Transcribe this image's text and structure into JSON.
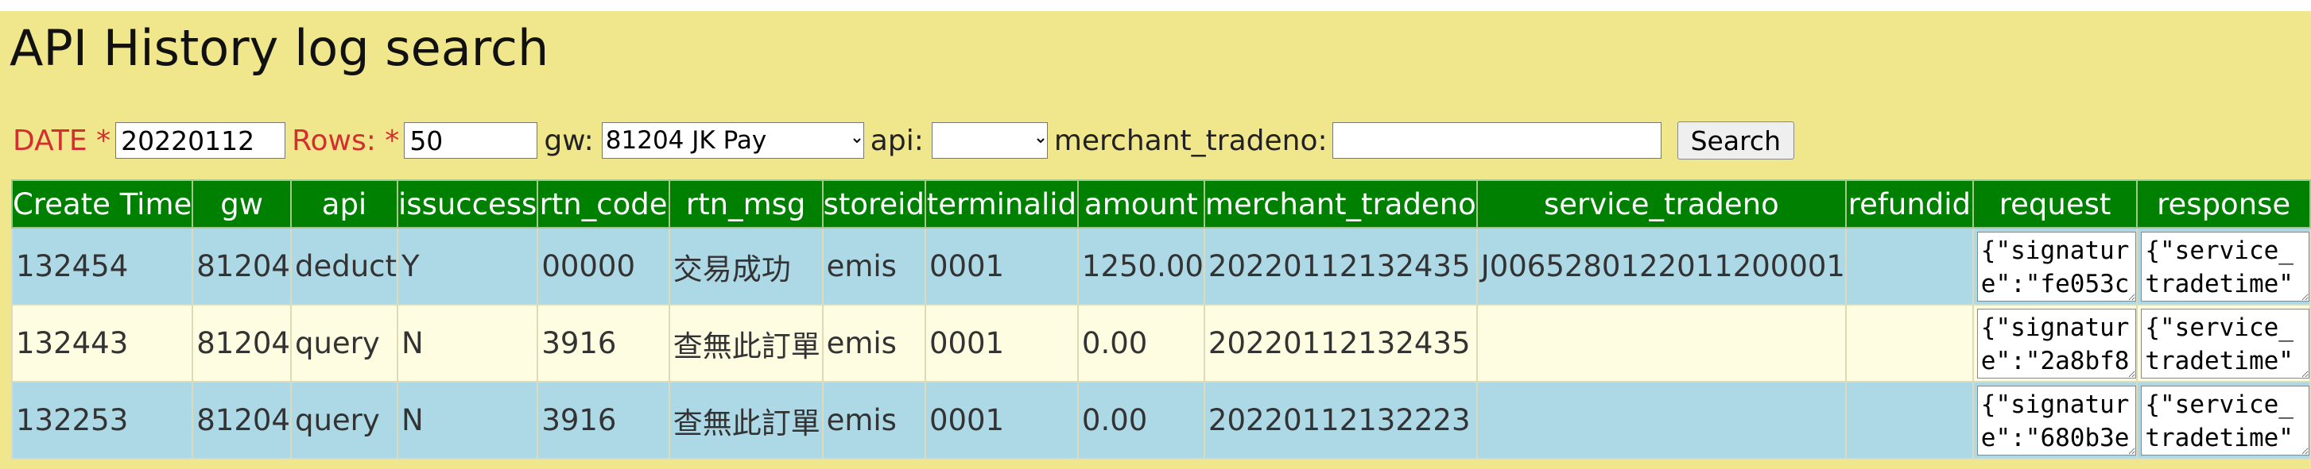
{
  "page": {
    "title": "API History log search"
  },
  "form": {
    "date_label": "DATE *",
    "date_value": "20220112",
    "rows_label": "Rows: *",
    "rows_value": "50",
    "gw_label": "gw:",
    "gw_selected": "81204 JK Pay",
    "api_label": "api:",
    "api_selected": "",
    "merchant_tradeno_label": "merchant_tradeno:",
    "merchant_tradeno_value": "",
    "search_label": "Search"
  },
  "table": {
    "headers": [
      "Create Time",
      "gw",
      "api",
      "issuccess",
      "rtn_code",
      "rtn_msg",
      "storeid",
      "terminalid",
      "amount",
      "merchant_tradeno",
      "service_tradeno",
      "refundid",
      "request",
      "response"
    ],
    "rows": [
      {
        "create_time": "132454",
        "gw": "81204",
        "api": "deduct",
        "issuccess": "Y",
        "rtn_code": "00000",
        "rtn_msg": "交易成功",
        "storeid": "emis",
        "terminalid": "0001",
        "amount": "1250.00",
        "merchant_tradeno": "20220112132435",
        "service_tradeno": "J0065280122011200001",
        "refundid": "",
        "request": "{\"signature\":\"fe053c",
        "response": "{\"service_tradetime\""
      },
      {
        "create_time": "132443",
        "gw": "81204",
        "api": "query",
        "issuccess": "N",
        "rtn_code": "3916",
        "rtn_msg": "查無此訂單",
        "storeid": "emis",
        "terminalid": "0001",
        "amount": "0.00",
        "merchant_tradeno": "20220112132435",
        "service_tradeno": "",
        "refundid": "",
        "request": "{\"signature\":\"2a8bf8",
        "response": "{\"service_tradetime\""
      },
      {
        "create_time": "132253",
        "gw": "81204",
        "api": "query",
        "issuccess": "N",
        "rtn_code": "3916",
        "rtn_msg": "查無此訂單",
        "storeid": "emis",
        "terminalid": "0001",
        "amount": "0.00",
        "merchant_tradeno": "20220112132223",
        "service_tradeno": "",
        "refundid": "",
        "request": "{\"signature\":\"680b3e",
        "response": "{\"service_tradetime\""
      }
    ]
  },
  "colors": {
    "panel_bg": "#f0e68c",
    "header_bg": "#008000",
    "row_blue": "#add8e6",
    "row_cream": "#fffde1",
    "required_label": "#d32f2f"
  }
}
